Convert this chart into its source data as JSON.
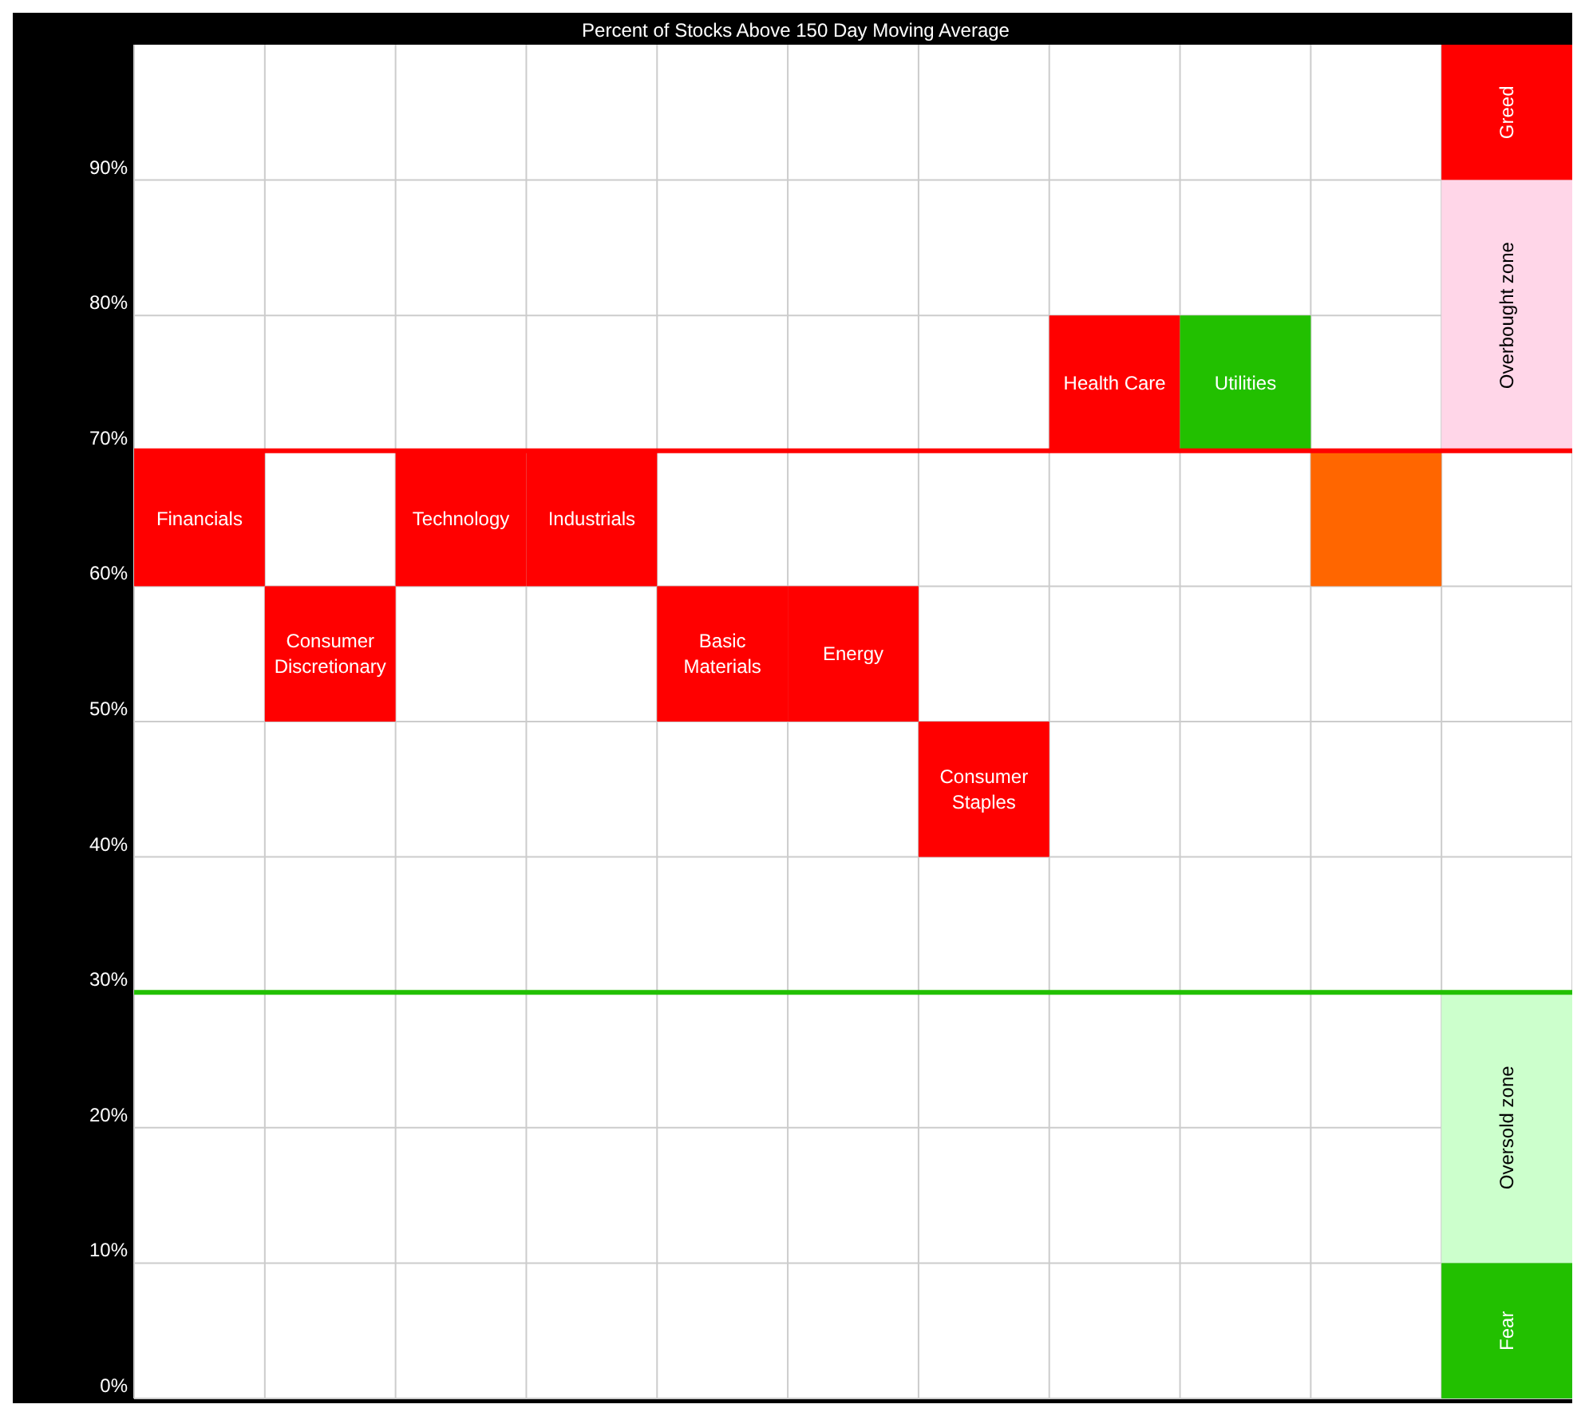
{
  "chart_data": {
    "type": "bar",
    "title": "Percent of Stocks Above 150 Day Moving Average",
    "categories": [
      "Financials",
      "Consumer Discretionary",
      "Technology",
      "Industrials",
      "Basic Materials",
      "Energy",
      "Consumer Staples",
      "Health Care",
      "Utilities",
      null,
      null
    ],
    "series": [
      {
        "values": [
          10,
          10,
          10,
          10,
          10,
          10,
          10,
          10,
          10,
          10,
          null
        ],
        "base": [
          60,
          50,
          60,
          60,
          50,
          50,
          40,
          70,
          70,
          60,
          null
        ],
        "colors": [
          "#ff0000",
          "#ff0000",
          "#ff0000",
          "#ff0000",
          "#ff0000",
          "#ff0000",
          "#ff0000",
          "#ff0000",
          "#22c000",
          "#ff6600",
          null
        ]
      },
      {
        "name": "Greed",
        "color": "#ff0000",
        "values": [
          null,
          null,
          null,
          null,
          null,
          null,
          null,
          null,
          null,
          null,
          10
        ],
        "base": [
          null,
          null,
          null,
          null,
          null,
          null,
          null,
          null,
          null,
          null,
          90
        ]
      },
      {
        "name": "Overbought zone",
        "color": "#ffd6e8",
        "values": [
          null,
          null,
          null,
          null,
          null,
          null,
          null,
          null,
          null,
          null,
          20
        ],
        "base": [
          null,
          null,
          null,
          null,
          null,
          null,
          null,
          null,
          null,
          null,
          70
        ]
      },
      {
        "name": "Oversold zone",
        "color": "#ccffcc",
        "values": [
          null,
          null,
          null,
          null,
          null,
          null,
          null,
          null,
          null,
          null,
          20
        ],
        "base": [
          null,
          null,
          null,
          null,
          null,
          null,
          null,
          null,
          null,
          null,
          10
        ]
      },
      {
        "name": "Fear",
        "color": "#22c000",
        "values": [
          null,
          null,
          null,
          null,
          null,
          null,
          null,
          null,
          null,
          null,
          10
        ],
        "base": [
          null,
          null,
          null,
          null,
          null,
          null,
          null,
          null,
          null,
          null,
          0
        ]
      }
    ],
    "ylim": [
      0,
      100
    ],
    "yticks": [
      {
        "value": 0,
        "label": "0%"
      },
      {
        "value": 10,
        "label": "10%"
      },
      {
        "value": 20,
        "label": "20%"
      },
      {
        "value": 30,
        "label": "30%"
      },
      {
        "value": 40,
        "label": "40%"
      },
      {
        "value": 50,
        "label": "50%"
      },
      {
        "value": 60,
        "label": "60%"
      },
      {
        "value": 70,
        "label": "70%"
      },
      {
        "value": 80,
        "label": "80%"
      },
      {
        "value": 90,
        "label": "90%"
      }
    ],
    "grid": true,
    "ref_lines": [
      {
        "axis": "y",
        "value": 70,
        "color": "#ff0000"
      },
      {
        "axis": "y",
        "value": 30,
        "color": "#22c000"
      }
    ]
  }
}
